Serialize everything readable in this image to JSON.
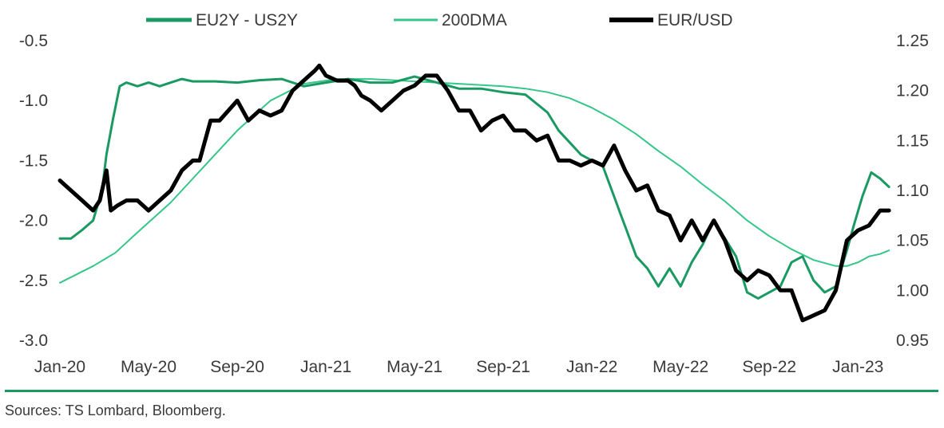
{
  "chart_data": {
    "type": "line",
    "title": "",
    "x_ticks": [
      "Jan-20",
      "May-20",
      "Sep-20",
      "Jan-21",
      "May-21",
      "Sep-21",
      "Jan-22",
      "May-22",
      "Sep-22",
      "Jan-23"
    ],
    "y_left": {
      "ticks": [
        "-0.5",
        "-1.0",
        "-1.5",
        "-2.0",
        "-2.5",
        "-3.0"
      ],
      "range": [
        -3.0,
        -0.5
      ]
    },
    "y_right": {
      "ticks": [
        "1.25",
        "1.20",
        "1.15",
        "1.10",
        "1.05",
        "1.00",
        "0.95"
      ],
      "range": [
        0.95,
        1.25
      ]
    },
    "x_range_months": [
      0,
      37
    ],
    "legend_position": "top",
    "grid": false,
    "series": [
      {
        "name": "EU2Y - US2Y",
        "axis": "left",
        "color": "#1a9a62",
        "points": [
          [
            0,
            -2.15
          ],
          [
            0.5,
            -2.15
          ],
          [
            1.0,
            -2.08
          ],
          [
            1.5,
            -2.0
          ],
          [
            1.9,
            -1.75
          ],
          [
            2.1,
            -1.45
          ],
          [
            2.4,
            -1.15
          ],
          [
            2.7,
            -0.88
          ],
          [
            3.0,
            -0.85
          ],
          [
            3.5,
            -0.88
          ],
          [
            4.0,
            -0.85
          ],
          [
            4.5,
            -0.88
          ],
          [
            5.0,
            -0.85
          ],
          [
            5.5,
            -0.82
          ],
          [
            6.0,
            -0.84
          ],
          [
            7.0,
            -0.84
          ],
          [
            8.0,
            -0.85
          ],
          [
            9.0,
            -0.83
          ],
          [
            10.0,
            -0.82
          ],
          [
            11.0,
            -0.88
          ],
          [
            12.0,
            -0.85
          ],
          [
            13.0,
            -0.82
          ],
          [
            14.0,
            -0.85
          ],
          [
            15.0,
            -0.85
          ],
          [
            16.0,
            -0.8
          ],
          [
            17.0,
            -0.85
          ],
          [
            18.0,
            -0.9
          ],
          [
            19.0,
            -0.9
          ],
          [
            20.0,
            -0.93
          ],
          [
            21.0,
            -0.95
          ],
          [
            22.0,
            -1.1
          ],
          [
            22.5,
            -1.25
          ],
          [
            23.0,
            -1.35
          ],
          [
            23.5,
            -1.45
          ],
          [
            24.0,
            -1.5
          ],
          [
            24.5,
            -1.55
          ],
          [
            25.0,
            -1.8
          ],
          [
            25.3,
            -1.95
          ],
          [
            25.6,
            -2.1
          ],
          [
            26.0,
            -2.3
          ],
          [
            26.5,
            -2.4
          ],
          [
            27.0,
            -2.55
          ],
          [
            27.5,
            -2.4
          ],
          [
            28.0,
            -2.55
          ],
          [
            28.5,
            -2.35
          ],
          [
            29.0,
            -2.2
          ],
          [
            29.5,
            -2.0
          ],
          [
            30.0,
            -2.15
          ],
          [
            30.5,
            -2.3
          ],
          [
            31.0,
            -2.6
          ],
          [
            31.5,
            -2.65
          ],
          [
            32.0,
            -2.6
          ],
          [
            32.5,
            -2.55
          ],
          [
            33.0,
            -2.35
          ],
          [
            33.5,
            -2.3
          ],
          [
            34.0,
            -2.5
          ],
          [
            34.5,
            -2.6
          ],
          [
            35.0,
            -2.55
          ],
          [
            35.5,
            -2.25
          ],
          [
            35.8,
            -2.05
          ],
          [
            36.2,
            -1.8
          ],
          [
            36.6,
            -1.6
          ],
          [
            37.0,
            -1.65
          ],
          [
            37.4,
            -1.72
          ]
        ]
      },
      {
        "name": "200DMA",
        "axis": "left",
        "color": "#35c68a",
        "points": [
          [
            0,
            -2.52
          ],
          [
            1.5,
            -2.38
          ],
          [
            2.5,
            -2.27
          ],
          [
            3.5,
            -2.1
          ],
          [
            5.0,
            -1.85
          ],
          [
            6.5,
            -1.55
          ],
          [
            8.0,
            -1.25
          ],
          [
            9.5,
            -1.0
          ],
          [
            11.0,
            -0.86
          ],
          [
            12.5,
            -0.82
          ],
          [
            14.0,
            -0.82
          ],
          [
            16.0,
            -0.84
          ],
          [
            18.0,
            -0.86
          ],
          [
            20.0,
            -0.88
          ],
          [
            21.0,
            -0.9
          ],
          [
            22.0,
            -0.93
          ],
          [
            23.0,
            -0.98
          ],
          [
            24.0,
            -1.06
          ],
          [
            25.0,
            -1.16
          ],
          [
            26.0,
            -1.28
          ],
          [
            27.0,
            -1.42
          ],
          [
            28.0,
            -1.55
          ],
          [
            29.0,
            -1.7
          ],
          [
            30.0,
            -1.84
          ],
          [
            31.0,
            -2.0
          ],
          [
            32.0,
            -2.13
          ],
          [
            33.0,
            -2.24
          ],
          [
            34.0,
            -2.33
          ],
          [
            35.0,
            -2.38
          ],
          [
            35.5,
            -2.38
          ],
          [
            36.0,
            -2.35
          ],
          [
            36.5,
            -2.3
          ],
          [
            37.0,
            -2.28
          ],
          [
            37.4,
            -2.25
          ]
        ]
      },
      {
        "name": "EUR/USD",
        "axis": "right",
        "color": "#000000",
        "points": [
          [
            0,
            1.11
          ],
          [
            0.5,
            1.1
          ],
          [
            1.0,
            1.09
          ],
          [
            1.5,
            1.08
          ],
          [
            1.8,
            1.09
          ],
          [
            2.1,
            1.12
          ],
          [
            2.3,
            1.08
          ],
          [
            2.6,
            1.085
          ],
          [
            3.0,
            1.09
          ],
          [
            3.5,
            1.09
          ],
          [
            4.0,
            1.08
          ],
          [
            4.5,
            1.09
          ],
          [
            5.0,
            1.1
          ],
          [
            5.5,
            1.12
          ],
          [
            6.0,
            1.13
          ],
          [
            6.3,
            1.13
          ],
          [
            6.8,
            1.17
          ],
          [
            7.2,
            1.17
          ],
          [
            7.6,
            1.18
          ],
          [
            8.0,
            1.19
          ],
          [
            8.5,
            1.17
          ],
          [
            9.0,
            1.18
          ],
          [
            9.5,
            1.175
          ],
          [
            10.0,
            1.18
          ],
          [
            10.5,
            1.2
          ],
          [
            11.0,
            1.21
          ],
          [
            11.5,
            1.22
          ],
          [
            11.7,
            1.225
          ],
          [
            12.0,
            1.215
          ],
          [
            12.5,
            1.21
          ],
          [
            13.0,
            1.21
          ],
          [
            13.3,
            1.205
          ],
          [
            13.6,
            1.195
          ],
          [
            14.0,
            1.19
          ],
          [
            14.5,
            1.18
          ],
          [
            15.0,
            1.19
          ],
          [
            15.5,
            1.2
          ],
          [
            16.0,
            1.205
          ],
          [
            16.5,
            1.215
          ],
          [
            17.0,
            1.215
          ],
          [
            17.5,
            1.2
          ],
          [
            18.0,
            1.18
          ],
          [
            18.5,
            1.18
          ],
          [
            19.0,
            1.16
          ],
          [
            19.5,
            1.17
          ],
          [
            20.0,
            1.175
          ],
          [
            20.5,
            1.16
          ],
          [
            21.0,
            1.16
          ],
          [
            21.5,
            1.15
          ],
          [
            22.0,
            1.155
          ],
          [
            22.5,
            1.13
          ],
          [
            23.0,
            1.13
          ],
          [
            23.5,
            1.125
          ],
          [
            24.0,
            1.13
          ],
          [
            24.5,
            1.125
          ],
          [
            25.0,
            1.145
          ],
          [
            25.5,
            1.12
          ],
          [
            26.0,
            1.1
          ],
          [
            26.5,
            1.105
          ],
          [
            27.0,
            1.08
          ],
          [
            27.5,
            1.075
          ],
          [
            28.0,
            1.05
          ],
          [
            28.5,
            1.07
          ],
          [
            29.0,
            1.05
          ],
          [
            29.5,
            1.07
          ],
          [
            30.0,
            1.05
          ],
          [
            30.5,
            1.02
          ],
          [
            31.0,
            1.01
          ],
          [
            31.5,
            1.02
          ],
          [
            32.0,
            1.015
          ],
          [
            32.5,
            1.0
          ],
          [
            33.0,
            1.0
          ],
          [
            33.5,
            0.97
          ],
          [
            34.0,
            0.975
          ],
          [
            34.5,
            0.98
          ],
          [
            35.0,
            1.0
          ],
          [
            35.5,
            1.05
          ],
          [
            36.0,
            1.06
          ],
          [
            36.5,
            1.065
          ],
          [
            37.0,
            1.08
          ],
          [
            37.4,
            1.08
          ]
        ]
      }
    ]
  },
  "source": "Sources: TS Lombard, Bloomberg.",
  "colors": {
    "accent_rule": "#1a9a62",
    "text": "#3a3a3a"
  }
}
